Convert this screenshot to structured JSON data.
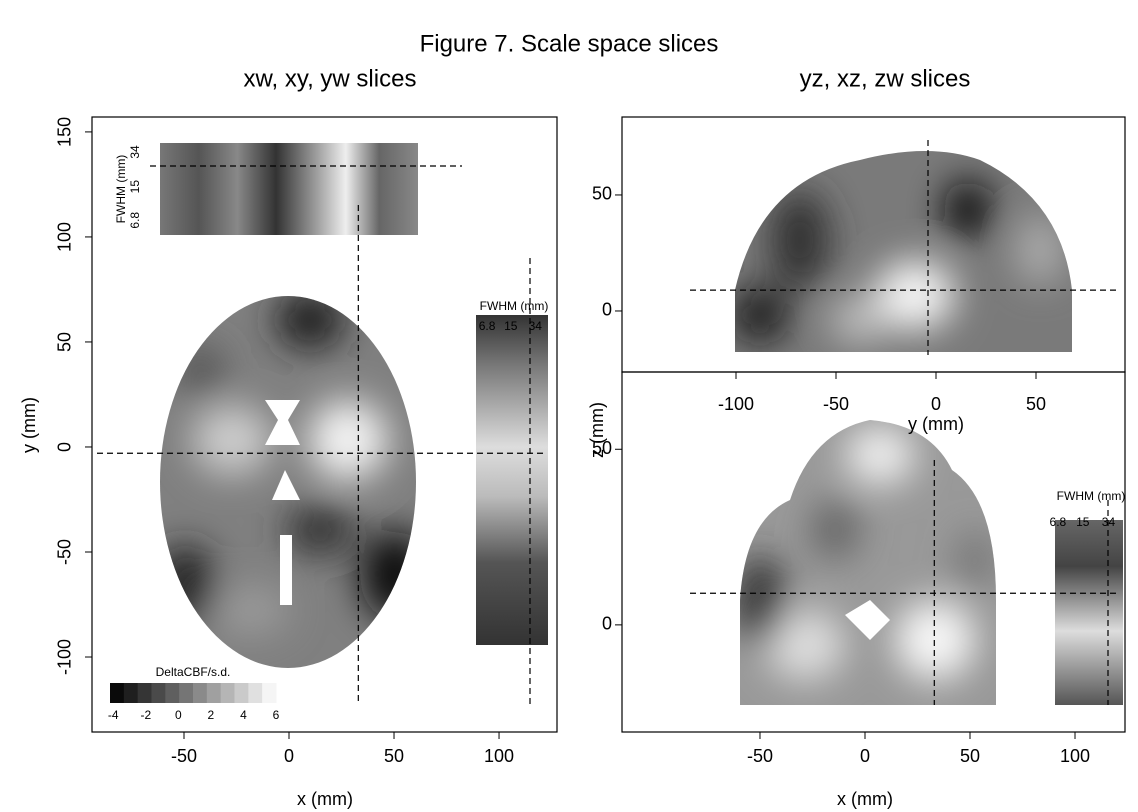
{
  "title": "Figure 7. Scale space slices",
  "chart_data": [
    {
      "type": "slice",
      "title": "xw, xy, yw slices",
      "xlabel": "x (mm)",
      "ylabel": "y (mm)",
      "xlim": [
        -93.8,
        127.6
      ],
      "ylim": [
        -135.7,
        157.1
      ],
      "xticks": [
        -50,
        0,
        50,
        100
      ],
      "yticks": [
        -100,
        -50,
        0,
        50,
        100,
        150
      ],
      "crosshair": {
        "x": 33,
        "y": -3
      },
      "colorbar": {
        "label": "DeltaCBF/s.d.",
        "ticks": [
          -4,
          -2,
          0,
          2,
          4,
          6
        ],
        "lim": [
          -4.2,
          6
        ]
      },
      "insets": [
        {
          "label": "FWHM (mm)",
          "ticks": [
            6.8,
            15,
            34
          ],
          "lim": [
            4.8,
            42
          ],
          "scale": "log"
        },
        {
          "label": "FWHM (mm)",
          "ticks": [
            6.8,
            15,
            34
          ],
          "lim": [
            4.7,
            52
          ],
          "scale": "log"
        }
      ]
    },
    {
      "type": "slice",
      "title": "yz, xz, zw slices",
      "xlabel": "y (mm)",
      "xlim": [
        -157,
        94.5
      ],
      "ylim": [
        -26.3,
        83.6
      ],
      "xticks": [
        -100,
        -50,
        0,
        50
      ],
      "yticks": [
        0,
        50
      ],
      "crosshair": {
        "x": -4,
        "y": 9
      }
    },
    {
      "type": "slice",
      "xlabel": "x (mm)",
      "ylabel": "z (mm)",
      "xlim": [
        -115.7,
        123.8
      ],
      "ylim": [
        -30.5,
        72
      ],
      "xticks": [
        -50,
        0,
        50,
        100
      ],
      "yticks": [
        0,
        50
      ],
      "crosshair": {
        "x": 33,
        "y": 9
      },
      "insets": [
        {
          "label": "FWHM (mm)",
          "ticks": [
            6.8,
            15,
            34
          ],
          "lim": [
            6.2,
            54
          ],
          "scale": "log"
        }
      ]
    }
  ]
}
